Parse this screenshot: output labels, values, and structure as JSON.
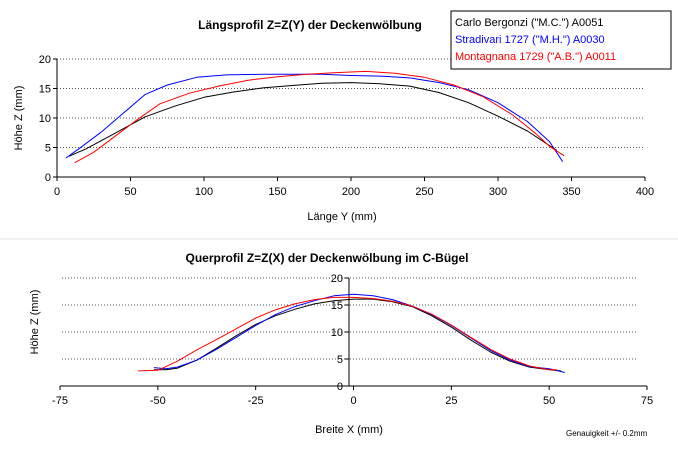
{
  "chart_data": [
    {
      "type": "line",
      "title": "Längsprofil Z=Z(Y) der Deckenwölbung",
      "xlabel": "Länge Y (mm)",
      "ylabel": "Höhe Z (mm)",
      "xlim": [
        0,
        400
      ],
      "ylim": [
        0,
        20
      ],
      "xticks": [
        "0",
        "50",
        "100",
        "150",
        "200",
        "250",
        "300",
        "350",
        "400"
      ],
      "yticks": [
        "0",
        "5",
        "10",
        "15",
        "20"
      ],
      "grid": "horizontal dotted",
      "legend_position": "top-right",
      "series": [
        {
          "name": "Carlo Bergonzi (\"M.C.\") A0051",
          "color": "#000000",
          "x": [
            8,
            20,
            40,
            60,
            80,
            100,
            120,
            140,
            160,
            180,
            200,
            220,
            240,
            260,
            280,
            300,
            320,
            340
          ],
          "y": [
            3.5,
            4.8,
            7.5,
            10.2,
            12.0,
            13.5,
            14.4,
            15.1,
            15.5,
            15.9,
            16.0,
            15.8,
            15.4,
            14.3,
            12.6,
            10.3,
            7.8,
            4.5
          ]
        },
        {
          "name": "Stradivari 1727 (\"M.H.\") A0030",
          "color": "#0000ff",
          "x": [
            6,
            15,
            30,
            45,
            60,
            75,
            95,
            115,
            140,
            160,
            180,
            200,
            220,
            240,
            260,
            280,
            300,
            320,
            335,
            344
          ],
          "y": [
            3.2,
            4.8,
            7.6,
            10.8,
            14.0,
            15.6,
            16.9,
            17.3,
            17.4,
            17.4,
            17.4,
            17.2,
            17.1,
            16.8,
            16.0,
            14.8,
            12.6,
            9.4,
            6.0,
            2.6
          ]
        },
        {
          "name": "Montagnana 1729 (\"A.B.\") A0011",
          "color": "#ff0000",
          "x": [
            12,
            25,
            40,
            55,
            70,
            90,
            110,
            130,
            150,
            170,
            190,
            210,
            230,
            250,
            270,
            290,
            310,
            325,
            335,
            345
          ],
          "y": [
            2.4,
            4.2,
            7.0,
            9.8,
            12.4,
            14.2,
            15.4,
            16.4,
            17.0,
            17.4,
            17.7,
            17.9,
            17.6,
            16.9,
            15.6,
            13.6,
            10.5,
            7.5,
            5.2,
            3.6
          ]
        }
      ]
    },
    {
      "type": "line",
      "title": "Querprofil Z=Z(X) der Deckenwölbung im C-Bügel",
      "xlabel": "Breite X (mm)",
      "ylabel": "Höhe Z (mm)",
      "xlim": [
        -75,
        75
      ],
      "ylim": [
        0,
        20
      ],
      "xticks": [
        "-75",
        "-50",
        "-25",
        "0",
        "25",
        "50",
        "75"
      ],
      "yticks": [
        "0",
        "5",
        "10",
        "15",
        "20"
      ],
      "grid": "horizontal dotted",
      "annotation": "Genauigkeit +/- 0.2mm",
      "series": [
        {
          "name": "Carlo Bergonzi (\"M.C.\") A0051",
          "color": "#000000",
          "x": [
            -51,
            -48,
            -45,
            -40,
            -35,
            -30,
            -25,
            -20,
            -15,
            -10,
            -5,
            0,
            5,
            10,
            15,
            20,
            25,
            30,
            35,
            40,
            45,
            50,
            53
          ],
          "y": [
            3.0,
            3.0,
            3.3,
            4.8,
            7.0,
            9.3,
            11.4,
            13.0,
            14.2,
            15.2,
            15.8,
            16.1,
            16.1,
            15.6,
            14.7,
            13.0,
            10.9,
            8.5,
            6.3,
            4.6,
            3.5,
            3.0,
            2.8
          ]
        },
        {
          "name": "Stradivari 1727 (\"M.H.\") A0030",
          "color": "#0000ff",
          "x": [
            -51,
            -48,
            -45,
            -40,
            -35,
            -30,
            -25,
            -20,
            -15,
            -10,
            -5,
            0,
            5,
            10,
            15,
            20,
            25,
            30,
            35,
            40,
            45,
            50,
            54
          ],
          "y": [
            3.4,
            3.2,
            3.5,
            4.8,
            6.8,
            9.0,
            11.2,
            13.2,
            14.7,
            15.8,
            16.7,
            17.0,
            16.7,
            16.0,
            14.8,
            13.2,
            11.2,
            8.9,
            6.6,
            4.8,
            3.6,
            3.2,
            2.5
          ]
        },
        {
          "name": "Montagnana 1729 (\"A.B.\") A0011",
          "color": "#ff0000",
          "x": [
            -55,
            -50,
            -45,
            -40,
            -35,
            -30,
            -25,
            -20,
            -15,
            -10,
            -5,
            0,
            5,
            10,
            15,
            20,
            25,
            30,
            35,
            40,
            45,
            50,
            52
          ],
          "y": [
            2.8,
            2.9,
            4.6,
            6.7,
            8.6,
            10.6,
            12.6,
            14.1,
            15.2,
            16.0,
            16.4,
            16.4,
            16.2,
            15.7,
            14.8,
            13.3,
            11.3,
            9.0,
            6.8,
            5.0,
            3.7,
            3.0,
            3.0
          ]
        }
      ]
    }
  ]
}
